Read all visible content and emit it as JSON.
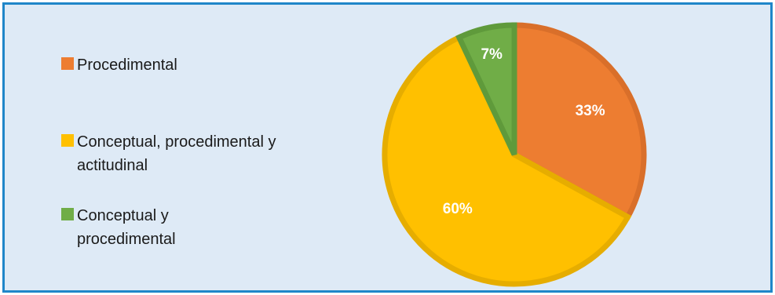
{
  "chart_data": {
    "type": "pie",
    "title": "",
    "legend_placement": "left",
    "slices": [
      {
        "name": "Procedimental",
        "value": 33,
        "label": "33%",
        "color": "#ed7d31",
        "stroke": "#d96f2a"
      },
      {
        "name": "Conceptual, procedimental y actitudinal",
        "value": 60,
        "label": "60%",
        "color": "#ffc000",
        "stroke": "#e6ad00"
      },
      {
        "name": "Conceptual y procedimental",
        "value": 7,
        "label": "7%",
        "color": "#70ad47",
        "stroke": "#5f9a3b"
      }
    ]
  },
  "legend": {
    "items": [
      {
        "label": "Procedimental",
        "color": "#ed7d31"
      },
      {
        "label": "Conceptual, procedimental y actitudinal",
        "color": "#ffc000"
      },
      {
        "label": "Conceptual y procedimental",
        "color": "#70ad47"
      }
    ]
  }
}
